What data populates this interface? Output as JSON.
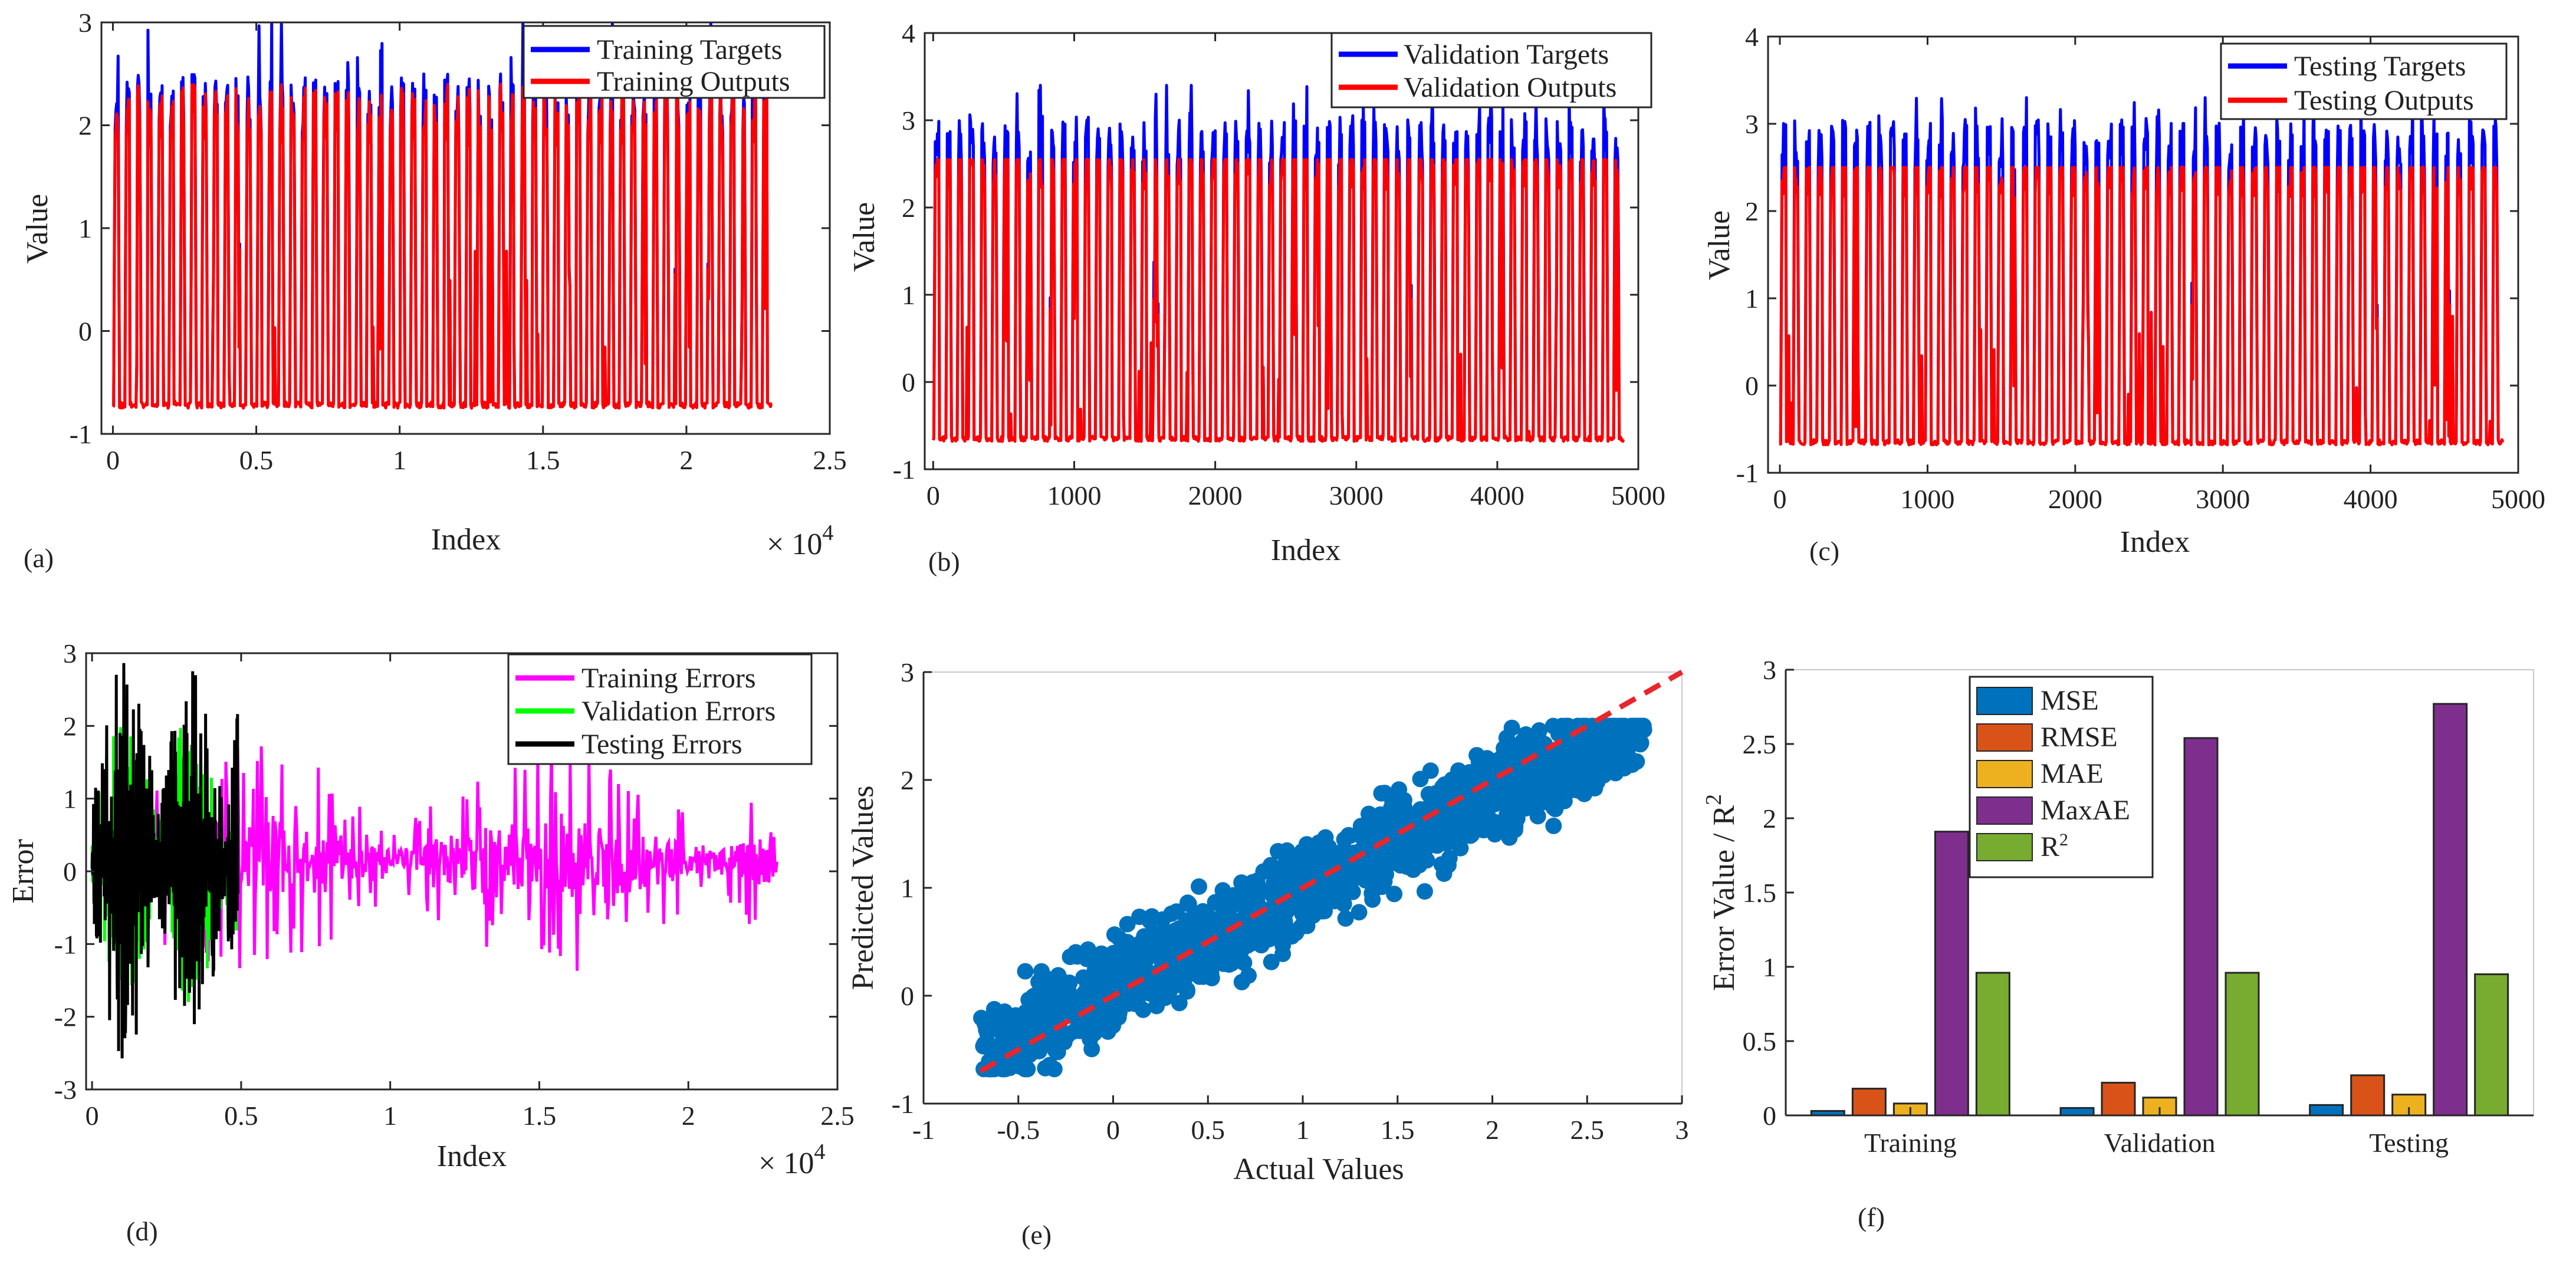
{
  "colors": {
    "targets": "#0000ff",
    "outputs": "#ff0000",
    "training_errors": "#ff00ff",
    "validation_errors": "#00ff00",
    "testing_errors": "#000000",
    "scatter": "#0072bd",
    "fit_line": "#e8262b",
    "bar_mse": "#0072bd",
    "bar_rmse": "#d95319",
    "bar_mae": "#edb120",
    "bar_maxae": "#7e2f8e",
    "bar_r2": "#77ac30"
  },
  "chart_data": [
    {
      "id": "a",
      "panel_label": "(a)",
      "type": "line",
      "xlabel": "Index",
      "ylabel": "Value",
      "xlim": [
        0,
        25000
      ],
      "ylim": [
        -1,
        3
      ],
      "xticks": [
        "0",
        "0.5",
        "1",
        "1.5",
        "2",
        "2.5"
      ],
      "xtick_values": [
        0,
        5000,
        10000,
        15000,
        20000,
        25000
      ],
      "yticks": [
        "-1",
        "0",
        "1",
        "2",
        "3"
      ],
      "ytick_values": [
        -1,
        0,
        1,
        2,
        3
      ],
      "multiplier": "× 10",
      "multiplier_exp": "4",
      "series": [
        {
          "name": "Training Targets",
          "color_key": "targets",
          "n": 23000,
          "base": -0.72,
          "peak_mean": 2.2,
          "peak_max": 3.0,
          "seed": 11
        },
        {
          "name": "Training Outputs",
          "color_key": "outputs",
          "n": 23000,
          "base": -0.72,
          "peak_mean": 2.1,
          "peak_max": 2.5,
          "seed": 11
        }
      ],
      "legend_position": "top-right"
    },
    {
      "id": "b",
      "panel_label": "(b)",
      "type": "line",
      "xlabel": "Index",
      "ylabel": "Value",
      "xlim": [
        0,
        5000
      ],
      "ylim": [
        -1,
        4
      ],
      "xticks": [
        "0",
        "1000",
        "2000",
        "3000",
        "4000",
        "5000"
      ],
      "xtick_values": [
        0,
        1000,
        2000,
        3000,
        4000,
        5000
      ],
      "yticks": [
        "-1",
        "0",
        "1",
        "2",
        "3",
        "4"
      ],
      "ytick_values": [
        -1,
        0,
        1,
        2,
        3,
        4
      ],
      "series": [
        {
          "name": "Validation Targets",
          "color_key": "targets",
          "n": 4900,
          "base": -0.65,
          "peak_mean": 2.75,
          "peak_max": 3.4,
          "seed": 23
        },
        {
          "name": "Validation Outputs",
          "color_key": "outputs",
          "n": 4900,
          "base": -0.65,
          "peak_mean": 2.5,
          "peak_max": 2.55,
          "seed": 23
        }
      ],
      "legend_position": "top-right"
    },
    {
      "id": "c",
      "panel_label": "(c)",
      "type": "line",
      "xlabel": "Index",
      "ylabel": "Value",
      "xlim": [
        0,
        5000
      ],
      "ylim": [
        -1,
        4
      ],
      "xticks": [
        "0",
        "1000",
        "2000",
        "3000",
        "4000",
        "5000"
      ],
      "xtick_values": [
        0,
        1000,
        2000,
        3000,
        4000,
        5000
      ],
      "yticks": [
        "-1",
        "0",
        "1",
        "2",
        "3",
        "4"
      ],
      "ytick_values": [
        -1,
        0,
        1,
        2,
        3,
        4
      ],
      "series": [
        {
          "name": "Testing Targets",
          "color_key": "targets",
          "n": 4900,
          "base": -0.65,
          "peak_mean": 2.75,
          "peak_max": 3.3,
          "seed": 37
        },
        {
          "name": "Testing Outputs",
          "color_key": "outputs",
          "n": 4900,
          "base": -0.65,
          "peak_mean": 2.45,
          "peak_max": 2.5,
          "seed": 37
        }
      ],
      "legend_position": "top-right"
    },
    {
      "id": "d",
      "panel_label": "(d)",
      "type": "line",
      "xlabel": "Index",
      "ylabel": "Error",
      "xlim": [
        0,
        25000
      ],
      "ylim": [
        -3,
        3
      ],
      "xticks": [
        "0",
        "0.5",
        "1",
        "1.5",
        "2",
        "2.5"
      ],
      "xtick_values": [
        0,
        5000,
        10000,
        15000,
        20000,
        25000
      ],
      "yticks": [
        "-3",
        "-2",
        "-1",
        "0",
        "1",
        "2",
        "3"
      ],
      "ytick_values": [
        -3,
        -2,
        -1,
        0,
        1,
        2,
        3
      ],
      "multiplier": "× 10",
      "multiplier_exp": "4",
      "series": [
        {
          "name": "Training Errors",
          "color_key": "training_errors",
          "n": 23000,
          "amplitude": 1.6,
          "seed": 51
        },
        {
          "name": "Validation Errors",
          "color_key": "validation_errors",
          "n": 4900,
          "amplitude": 2.0,
          "seed": 67
        },
        {
          "name": "Testing Errors",
          "color_key": "testing_errors",
          "n": 4900,
          "amplitude": 2.8,
          "seed": 83
        }
      ],
      "legend_position": "top-right"
    },
    {
      "id": "e",
      "panel_label": "(e)",
      "type": "scatter",
      "xlabel": "Actual Values",
      "ylabel": "Predicted Values",
      "xlim": [
        -1,
        3
      ],
      "ylim": [
        -1,
        3
      ],
      "xticks": [
        "-1",
        "-0.5",
        "0",
        "0.5",
        "1",
        "1.5",
        "2",
        "2.5",
        "3"
      ],
      "xtick_values": [
        -1,
        -0.5,
        0,
        0.5,
        1,
        1.5,
        2,
        2.5,
        3
      ],
      "yticks": [
        "-1",
        "0",
        "1",
        "2",
        "3"
      ],
      "ytick_values": [
        -1,
        0,
        1,
        2,
        3
      ],
      "points": {
        "count": 1400,
        "x_range": [
          -0.7,
          2.8
        ],
        "slope": 0.88,
        "spread": 0.3,
        "seed": 97
      },
      "fit_line": {
        "x": [
          -0.7,
          3.0
        ],
        "y": [
          -0.7,
          3.0
        ]
      }
    },
    {
      "id": "f",
      "panel_label": "(f)",
      "type": "bar",
      "xlabel": "",
      "ylabel": "Error Value / R",
      "ylabel_sup": "2",
      "ylim": [
        0,
        3
      ],
      "yticks": [
        "0",
        "0.5",
        "1",
        "1.5",
        "2",
        "2.5",
        "3"
      ],
      "ytick_values": [
        0,
        0.5,
        1,
        1.5,
        2,
        2.5,
        3
      ],
      "categories": [
        "Training",
        "Validation",
        "Testing"
      ],
      "series": [
        {
          "name": "MSE",
          "sup": "",
          "color_key": "bar_mse",
          "values": [
            0.03,
            0.05,
            0.07
          ]
        },
        {
          "name": "RMSE",
          "sup": "",
          "color_key": "bar_rmse",
          "values": [
            0.18,
            0.22,
            0.27
          ]
        },
        {
          "name": "MAE",
          "sup": "",
          "color_key": "bar_mae",
          "values": [
            0.08,
            0.12,
            0.14
          ]
        },
        {
          "name": "MaxAE",
          "sup": "",
          "color_key": "bar_maxae",
          "values": [
            1.91,
            2.54,
            2.77
          ]
        },
        {
          "name": "R",
          "sup": "2",
          "color_key": "bar_r2",
          "values": [
            0.96,
            0.96,
            0.95
          ]
        }
      ],
      "legend_position": "top-left"
    }
  ]
}
